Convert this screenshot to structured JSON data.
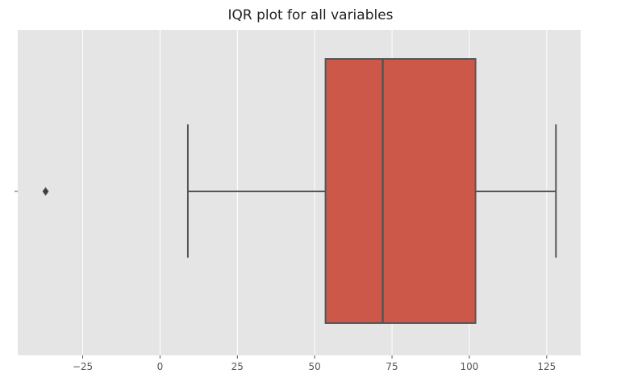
{
  "chart_data": {
    "type": "box",
    "title": "IQR plot for all variables",
    "xlabel": "",
    "ylabel": "",
    "orientation": "horizontal",
    "xlim": [
      -46,
      136
    ],
    "xticks": [
      -25,
      0,
      25,
      50,
      75,
      100,
      125
    ],
    "grid": true,
    "box": {
      "whisker_low": 9,
      "q1": 53.5,
      "median": 72,
      "q3": 102,
      "whisker_high": 128,
      "outliers": [
        -37
      ]
    },
    "colors": {
      "box_fill": "#CC584A",
      "line": "#555555",
      "background": "#E5E5E5",
      "grid": "#FFFFFF"
    }
  }
}
